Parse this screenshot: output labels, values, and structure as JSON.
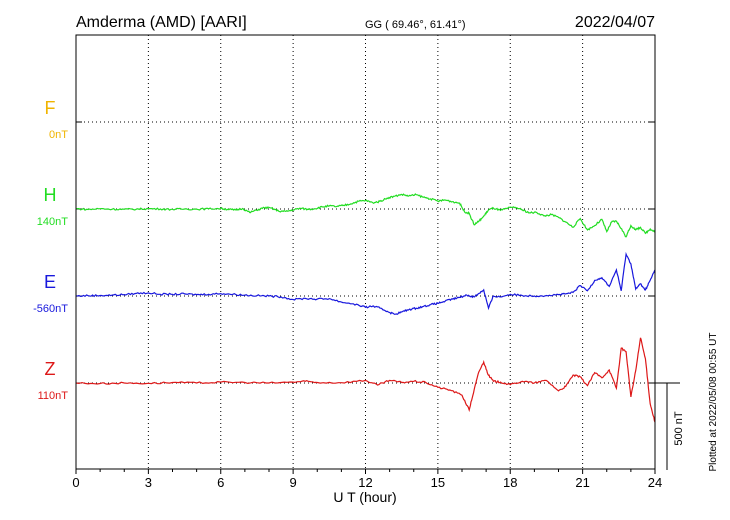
{
  "header": {
    "station": "Amderma (AMD)  [AARI]",
    "coords": "GG ( 69.46°,  61.41°)",
    "date": "2022/04/07"
  },
  "footer": {
    "plotted": "Plotted at 2022/05/08 00:55 UT"
  },
  "chart_data": {
    "type": "line",
    "xlabel": "U T (hour)",
    "xlim": [
      0,
      24
    ],
    "xticks": [
      "0",
      "3",
      "6",
      "9",
      "12",
      "15",
      "18",
      "21",
      "24"
    ],
    "grid": true,
    "scale_bar_label": "500 nT",
    "scale_bar_nT": 500,
    "series": [
      {
        "name": "F",
        "baseline_label": "0nT",
        "color": "#f0b400",
        "offset_rank": 0,
        "points": []
      },
      {
        "name": "H",
        "baseline_label": "140nT",
        "color": "#22dd22",
        "offset_rank": 1,
        "points": [
          [
            0,
            2
          ],
          [
            0.5,
            -3
          ],
          [
            1,
            2
          ],
          [
            1.5,
            -1
          ],
          [
            2,
            -2
          ],
          [
            2.5,
            -1
          ],
          [
            3,
            2
          ],
          [
            3.5,
            0
          ],
          [
            4,
            -2
          ],
          [
            4.5,
            0
          ],
          [
            5,
            -1
          ],
          [
            5.5,
            1
          ],
          [
            6,
            3
          ],
          [
            6.3,
            -2
          ],
          [
            6.6,
            -6
          ],
          [
            6.9,
            3
          ],
          [
            7.2,
            -20
          ],
          [
            7.5,
            -6
          ],
          [
            7.8,
            8
          ],
          [
            8.1,
            5
          ],
          [
            8.4,
            -12
          ],
          [
            8.7,
            -14
          ],
          [
            9,
            -5
          ],
          [
            9.3,
            4
          ],
          [
            9.6,
            -2
          ],
          [
            9.9,
            2
          ],
          [
            10.2,
            12
          ],
          [
            10.5,
            18
          ],
          [
            10.8,
            14
          ],
          [
            11.1,
            21
          ],
          [
            11.4,
            30
          ],
          [
            11.7,
            44
          ],
          [
            12,
            49
          ],
          [
            12.3,
            36
          ],
          [
            12.6,
            44
          ],
          [
            12.9,
            63
          ],
          [
            13.2,
            73
          ],
          [
            13.5,
            84
          ],
          [
            13.8,
            75
          ],
          [
            14.1,
            82
          ],
          [
            14.4,
            68
          ],
          [
            14.7,
            58
          ],
          [
            15,
            45
          ],
          [
            15.3,
            52
          ],
          [
            15.6,
            42
          ],
          [
            15.9,
            34
          ],
          [
            16.1,
            -15
          ],
          [
            16.3,
            -25
          ],
          [
            16.5,
            -90
          ],
          [
            16.7,
            -70
          ],
          [
            16.9,
            -42
          ],
          [
            17.1,
            -5
          ],
          [
            17.3,
            5
          ],
          [
            17.6,
            -8
          ],
          [
            17.9,
            5
          ],
          [
            18.2,
            10
          ],
          [
            18.5,
            -5
          ],
          [
            18.8,
            -22
          ],
          [
            19.1,
            -20
          ],
          [
            19.4,
            -40
          ],
          [
            19.7,
            -32
          ],
          [
            20,
            -48
          ],
          [
            20.3,
            -75
          ],
          [
            20.6,
            -105
          ],
          [
            20.9,
            -55
          ],
          [
            21.2,
            -120
          ],
          [
            21.5,
            -95
          ],
          [
            21.8,
            -60
          ],
          [
            22,
            -130
          ],
          [
            22.2,
            -75
          ],
          [
            22.4,
            -70
          ],
          [
            22.6,
            -112
          ],
          [
            22.8,
            -160
          ],
          [
            23,
            -95
          ],
          [
            23.2,
            -120
          ],
          [
            23.4,
            -105
          ],
          [
            23.6,
            -140
          ],
          [
            23.8,
            -115
          ],
          [
            24,
            -130
          ]
        ]
      },
      {
        "name": "E",
        "baseline_label": "-560nT",
        "color": "#1818dd",
        "offset_rank": 2,
        "points": [
          [
            0,
            0
          ],
          [
            0.5,
            2
          ],
          [
            1,
            3
          ],
          [
            1.5,
            5
          ],
          [
            2,
            8
          ],
          [
            2.5,
            15
          ],
          [
            3,
            18
          ],
          [
            3.5,
            10
          ],
          [
            4,
            10
          ],
          [
            4.5,
            12
          ],
          [
            5,
            8
          ],
          [
            5.5,
            10
          ],
          [
            6,
            14
          ],
          [
            6.5,
            10
          ],
          [
            7,
            5
          ],
          [
            7.5,
            2
          ],
          [
            8,
            0
          ],
          [
            8.5,
            -5
          ],
          [
            9,
            -20
          ],
          [
            9.5,
            -14
          ],
          [
            10,
            -18
          ],
          [
            10.5,
            -15
          ],
          [
            11,
            -35
          ],
          [
            11.5,
            -45
          ],
          [
            12,
            -65
          ],
          [
            12.3,
            -58
          ],
          [
            12.6,
            -70
          ],
          [
            12.9,
            -88
          ],
          [
            13.2,
            -105
          ],
          [
            13.5,
            -92
          ],
          [
            13.8,
            -78
          ],
          [
            14.1,
            -70
          ],
          [
            14.4,
            -60
          ],
          [
            14.7,
            -50
          ],
          [
            15,
            -42
          ],
          [
            15.3,
            -30
          ],
          [
            15.6,
            -18
          ],
          [
            15.9,
            -8
          ],
          [
            16.2,
            5
          ],
          [
            16.5,
            -5
          ],
          [
            16.7,
            15
          ],
          [
            16.9,
            35
          ],
          [
            17.1,
            -70
          ],
          [
            17.3,
            0
          ],
          [
            17.6,
            -5
          ],
          [
            18,
            10
          ],
          [
            18.5,
            3
          ],
          [
            19,
            0
          ],
          [
            19.5,
            3
          ],
          [
            20,
            8
          ],
          [
            20.3,
            12
          ],
          [
            20.6,
            20
          ],
          [
            20.9,
            60
          ],
          [
            21.2,
            30
          ],
          [
            21.5,
            90
          ],
          [
            21.8,
            105
          ],
          [
            22.1,
            55
          ],
          [
            22.4,
            150
          ],
          [
            22.6,
            30
          ],
          [
            22.8,
            240
          ],
          [
            23,
            185
          ],
          [
            23.2,
            40
          ],
          [
            23.4,
            70
          ],
          [
            23.6,
            35
          ],
          [
            23.8,
            90
          ],
          [
            24,
            150
          ]
        ]
      },
      {
        "name": "Z",
        "baseline_label": "110nT",
        "color": "#dd1818",
        "offset_rank": 3,
        "points": [
          [
            0,
            0
          ],
          [
            1,
            -3
          ],
          [
            2,
            0
          ],
          [
            3,
            -2
          ],
          [
            4,
            3
          ],
          [
            5,
            0
          ],
          [
            6,
            5
          ],
          [
            7,
            3
          ],
          [
            8,
            0
          ],
          [
            9,
            5
          ],
          [
            9.5,
            10
          ],
          [
            10,
            3
          ],
          [
            11,
            2
          ],
          [
            12,
            15
          ],
          [
            12.5,
            -12
          ],
          [
            13,
            15
          ],
          [
            13.5,
            3
          ],
          [
            14,
            10
          ],
          [
            14.5,
            3
          ],
          [
            15,
            -25
          ],
          [
            15.5,
            -40
          ],
          [
            16,
            -70
          ],
          [
            16.3,
            -155
          ],
          [
            16.5,
            -40
          ],
          [
            16.7,
            65
          ],
          [
            16.9,
            120
          ],
          [
            17.1,
            45
          ],
          [
            17.3,
            10
          ],
          [
            17.6,
            5
          ],
          [
            18,
            -10
          ],
          [
            18.5,
            10
          ],
          [
            19,
            0
          ],
          [
            19.5,
            15
          ],
          [
            20,
            -45
          ],
          [
            20.3,
            -20
          ],
          [
            20.6,
            45
          ],
          [
            20.9,
            35
          ],
          [
            21.2,
            -15
          ],
          [
            21.5,
            60
          ],
          [
            21.8,
            30
          ],
          [
            22.1,
            75
          ],
          [
            22.4,
            -30
          ],
          [
            22.6,
            200
          ],
          [
            22.8,
            180
          ],
          [
            23,
            -80
          ],
          [
            23.2,
            70
          ],
          [
            23.4,
            260
          ],
          [
            23.6,
            140
          ],
          [
            23.8,
            -120
          ],
          [
            24,
            -225
          ]
        ]
      }
    ]
  }
}
